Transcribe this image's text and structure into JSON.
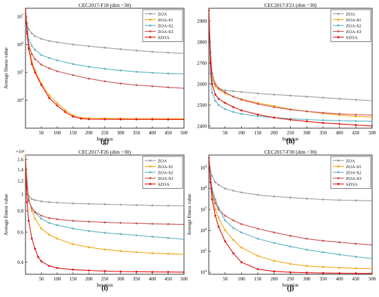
{
  "figure_labels": [
    "(g)",
    "(h)",
    "(i)",
    "(j)"
  ],
  "colors": {
    "ZOA": "#9b9b9b",
    "ZOA-S1": "#f5a511",
    "ZOA-S2": "#5db1c0",
    "ZOA-S3": "#c9514d",
    "SZOA": "#e00b0b"
  },
  "chart_data": [
    {
      "type": "line",
      "title": "CEC2017-F18 (dim =30)",
      "xlabel": "Iteration",
      "ylabel": "Average fitness value",
      "xlim": [
        0,
        500
      ],
      "ylim": [
        1000,
        20000000
      ],
      "yscale": "log",
      "xticks": [
        50,
        100,
        150,
        200,
        250,
        300,
        350,
        400,
        450,
        500
      ],
      "yticks": [
        {
          "v": 10000,
          "base": "10",
          "exp": "4"
        },
        {
          "v": 100000,
          "base": "10",
          "exp": "5"
        },
        {
          "v": 1000000,
          "base": "10",
          "exp": "6"
        },
        {
          "v": 10000000,
          "base": "10",
          "exp": "7"
        }
      ],
      "legend_position": "top-right",
      "series": [
        {
          "name": "ZOA",
          "x": [
            0,
            5,
            10,
            20,
            30,
            50,
            75,
            100,
            150,
            200,
            250,
            300,
            350,
            400,
            450,
            500
          ],
          "values": [
            10000000,
            6000000,
            3500000,
            2500000,
            2000000,
            1600000,
            1350000,
            1200000,
            1000000,
            870000,
            770000,
            680000,
            610000,
            550000,
            510000,
            480000
          ]
        },
        {
          "name": "ZOA-S1",
          "x": [
            0,
            5,
            10,
            20,
            30,
            50,
            75,
            100,
            125,
            150,
            175,
            200,
            250,
            300,
            350,
            400,
            450,
            500
          ],
          "values": [
            20000000,
            3000000,
            800000,
            250000,
            120000,
            40000,
            15000,
            8000,
            4500,
            2900,
            2400,
            2300,
            2250,
            2230,
            2220,
            2215,
            2210,
            2205
          ]
        },
        {
          "name": "ZOA-S2",
          "x": [
            0,
            5,
            10,
            20,
            30,
            50,
            75,
            100,
            150,
            200,
            250,
            300,
            350,
            400,
            450,
            500
          ],
          "values": [
            10000000,
            4000000,
            1500000,
            900000,
            650000,
            420000,
            330000,
            270000,
            200000,
            160000,
            135000,
            118000,
            105000,
            97000,
            92000,
            88000
          ]
        },
        {
          "name": "ZOA-S3",
          "x": [
            0,
            5,
            10,
            20,
            30,
            50,
            75,
            100,
            150,
            200,
            250,
            300,
            350,
            400,
            450,
            500
          ],
          "values": [
            10000000,
            3000000,
            1000000,
            450000,
            300000,
            190000,
            140000,
            110000,
            80000,
            60000,
            48000,
            40000,
            35000,
            32000,
            29000,
            27000
          ]
        },
        {
          "name": "SZOA",
          "x": [
            0,
            5,
            10,
            20,
            30,
            50,
            75,
            100,
            125,
            150,
            175,
            200,
            250,
            300,
            350,
            400,
            450,
            500
          ],
          "values": [
            20000000,
            2500000,
            700000,
            200000,
            100000,
            35000,
            12000,
            6500,
            3800,
            2600,
            2200,
            2100,
            2080,
            2070,
            2060,
            2055,
            2050,
            2050
          ]
        }
      ]
    },
    {
      "type": "line",
      "title": "CEC2017-F21 (dim =30)",
      "xlabel": "Iteration",
      "ylabel": "",
      "xlim": [
        0,
        500
      ],
      "ylim": [
        2390,
        2960
      ],
      "yscale": "linear",
      "xticks": [
        50,
        100,
        150,
        200,
        250,
        300,
        350,
        400,
        450,
        500
      ],
      "yticks": [
        {
          "v": 2400,
          "label": "2400"
        },
        {
          "v": 2500,
          "label": "2500"
        },
        {
          "v": 2600,
          "label": "2600"
        },
        {
          "v": 2700,
          "label": "2700"
        },
        {
          "v": 2800,
          "label": "2800"
        },
        {
          "v": 2900,
          "label": "2900"
        }
      ],
      "legend_position": "top-right",
      "series": [
        {
          "name": "ZOA",
          "x": [
            0,
            5,
            10,
            20,
            30,
            50,
            75,
            100,
            150,
            200,
            250,
            300,
            350,
            400,
            450,
            500
          ],
          "values": [
            2950,
            2700,
            2620,
            2590,
            2580,
            2570,
            2566,
            2562,
            2555,
            2550,
            2545,
            2540,
            2535,
            2530,
            2525,
            2521
          ]
        },
        {
          "name": "ZOA-S1",
          "x": [
            0,
            5,
            10,
            20,
            30,
            50,
            75,
            100,
            150,
            200,
            250,
            300,
            350,
            400,
            450,
            500
          ],
          "values": [
            2950,
            2720,
            2630,
            2590,
            2575,
            2555,
            2540,
            2528,
            2510,
            2495,
            2480,
            2470,
            2460,
            2452,
            2446,
            2442
          ]
        },
        {
          "name": "ZOA-S2",
          "x": [
            0,
            5,
            10,
            20,
            30,
            50,
            75,
            100,
            150,
            200,
            250,
            300,
            350,
            400,
            450,
            500
          ],
          "values": [
            2950,
            2650,
            2560,
            2520,
            2500,
            2480,
            2467,
            2458,
            2447,
            2440,
            2435,
            2431,
            2428,
            2426,
            2424,
            2423
          ]
        },
        {
          "name": "ZOA-S3",
          "x": [
            0,
            5,
            10,
            20,
            30,
            50,
            75,
            100,
            150,
            200,
            250,
            300,
            350,
            400,
            450,
            500
          ],
          "values": [
            2950,
            2750,
            2650,
            2600,
            2580,
            2560,
            2540,
            2525,
            2505,
            2490,
            2478,
            2470,
            2463,
            2458,
            2454,
            2452
          ]
        },
        {
          "name": "SZOA",
          "x": [
            0,
            5,
            10,
            20,
            30,
            50,
            75,
            100,
            150,
            200,
            250,
            300,
            350,
            400,
            450,
            500
          ],
          "values": [
            2950,
            2700,
            2600,
            2550,
            2530,
            2510,
            2490,
            2475,
            2455,
            2440,
            2430,
            2422,
            2415,
            2410,
            2405,
            2400
          ]
        }
      ]
    },
    {
      "type": "line",
      "title": "CEC2017-F26 (dim =30)",
      "xlabel": "Iteration",
      "ylabel": "Average fitness value",
      "xlim": [
        0,
        500
      ],
      "ylim": [
        3400,
        17000
      ],
      "yscale": "log",
      "y_multiplier": "×10⁴",
      "xticks": [
        50,
        100,
        150,
        200,
        250,
        300,
        350,
        400,
        450,
        500
      ],
      "yticks": [
        {
          "v": 4000,
          "label": "0.4"
        },
        {
          "v": 6000,
          "label": "0.6"
        },
        {
          "v": 8000,
          "label": "0.8"
        },
        {
          "v": 10000,
          "label": "1"
        },
        {
          "v": 12000,
          "label": "1.2"
        },
        {
          "v": 14000,
          "label": "1.4"
        },
        {
          "v": 16000,
          "label": "1.6"
        }
      ],
      "legend_position": "top-right",
      "series": [
        {
          "name": "ZOA",
          "x": [
            0,
            5,
            10,
            20,
            30,
            50,
            75,
            100,
            150,
            200,
            250,
            300,
            350,
            400,
            450,
            500
          ],
          "values": [
            16500,
            11000,
            9800,
            9400,
            9250,
            9100,
            9000,
            8950,
            8850,
            8800,
            8750,
            8700,
            8650,
            8600,
            8580,
            8560
          ]
        },
        {
          "name": "ZOA-S1",
          "x": [
            0,
            5,
            10,
            20,
            30,
            50,
            75,
            100,
            150,
            200,
            250,
            300,
            350,
            400,
            450,
            500
          ],
          "values": [
            17000,
            12000,
            9500,
            8000,
            7200,
            6300,
            5800,
            5500,
            5100,
            4900,
            4750,
            4650,
            4580,
            4520,
            4480,
            4450
          ]
        },
        {
          "name": "ZOA-S2",
          "x": [
            0,
            5,
            10,
            20,
            30,
            50,
            75,
            100,
            150,
            200,
            250,
            300,
            350,
            400,
            450,
            500
          ],
          "values": [
            16000,
            11500,
            9300,
            8300,
            7800,
            7200,
            6800,
            6600,
            6300,
            6100,
            5950,
            5850,
            5750,
            5650,
            5550,
            5450
          ]
        },
        {
          "name": "ZOA-S3",
          "x": [
            0,
            5,
            10,
            20,
            30,
            50,
            75,
            100,
            150,
            200,
            250,
            300,
            350,
            400,
            450,
            500
          ],
          "values": [
            16000,
            11000,
            9200,
            8300,
            7900,
            7500,
            7250,
            7150,
            7000,
            6920,
            6850,
            6800,
            6760,
            6720,
            6690,
            6660
          ]
        },
        {
          "name": "SZOA",
          "x": [
            0,
            5,
            10,
            20,
            30,
            40,
            50,
            75,
            100,
            150,
            200,
            250,
            300,
            350,
            400,
            450,
            500
          ],
          "values": [
            14000,
            9000,
            7000,
            5500,
            4800,
            4300,
            4050,
            3800,
            3700,
            3620,
            3580,
            3550,
            3530,
            3520,
            3510,
            3505,
            3500
          ]
        }
      ]
    },
    {
      "type": "line",
      "title": "CEC2017-F30 (dim =30)",
      "xlabel": "Iteration",
      "ylabel": "Average fitness value",
      "xlim": [
        0,
        500
      ],
      "ylim": [
        8000,
        4000000000
      ],
      "yscale": "log",
      "xticks": [
        50,
        100,
        150,
        200,
        250,
        300,
        350,
        400,
        450,
        500
      ],
      "yticks": [
        {
          "v": 10000,
          "base": "10",
          "exp": "4"
        },
        {
          "v": 100000,
          "base": "10",
          "exp": "5"
        },
        {
          "v": 1000000,
          "base": "10",
          "exp": "6"
        },
        {
          "v": 10000000,
          "base": "10",
          "exp": "7"
        },
        {
          "v": 100000000,
          "base": "10",
          "exp": "8"
        },
        {
          "v": 1000000000,
          "base": "10",
          "exp": "9"
        }
      ],
      "legend_position": "top-right",
      "series": [
        {
          "name": "ZOA",
          "x": [
            0,
            5,
            10,
            20,
            30,
            50,
            75,
            100,
            150,
            200,
            250,
            300,
            350,
            400,
            450,
            500
          ],
          "values": [
            3000000000,
            700000000,
            400000000,
            200000000,
            150000000,
            100000000,
            80000000,
            65000000,
            50000000,
            42000000,
            37000000,
            33000000,
            30000000,
            28000000,
            27000000,
            26000000
          ]
        },
        {
          "name": "ZOA-S1",
          "x": [
            0,
            5,
            10,
            20,
            30,
            50,
            75,
            100,
            150,
            200,
            250,
            300,
            350,
            400,
            450,
            500
          ],
          "values": [
            3000000000,
            300000000,
            60000000,
            10000000,
            4000000,
            1000000,
            350000,
            150000,
            60000,
            35000,
            25000,
            20000,
            18000,
            16500,
            15500,
            15000
          ]
        },
        {
          "name": "ZOA-S2",
          "x": [
            0,
            5,
            10,
            20,
            30,
            50,
            75,
            100,
            150,
            200,
            250,
            300,
            350,
            400,
            450,
            500
          ],
          "values": [
            3000000000,
            400000000,
            100000000,
            30000000,
            12000000,
            3000000,
            1300000,
            800000,
            400000,
            250000,
            170000,
            120000,
            90000,
            70000,
            55000,
            45000
          ]
        },
        {
          "name": "ZOA-S3",
          "x": [
            0,
            5,
            10,
            20,
            30,
            50,
            75,
            100,
            150,
            200,
            250,
            300,
            350,
            400,
            450,
            500
          ],
          "values": [
            3000000000,
            300000000,
            70000000,
            20000000,
            10000000,
            5000000,
            3000000,
            2000000,
            1200000,
            800000,
            550000,
            400000,
            320000,
            270000,
            230000,
            200000
          ]
        },
        {
          "name": "SZOA",
          "x": [
            0,
            5,
            10,
            20,
            30,
            50,
            75,
            100,
            150,
            200,
            250,
            300,
            350,
            400,
            450,
            500
          ],
          "values": [
            3000000000,
            200000000,
            30000000,
            5000000,
            1500000,
            300000,
            80000,
            30000,
            14000,
            11000,
            10000,
            9500,
            9200,
            9000,
            8800,
            8700
          ]
        }
      ]
    }
  ]
}
